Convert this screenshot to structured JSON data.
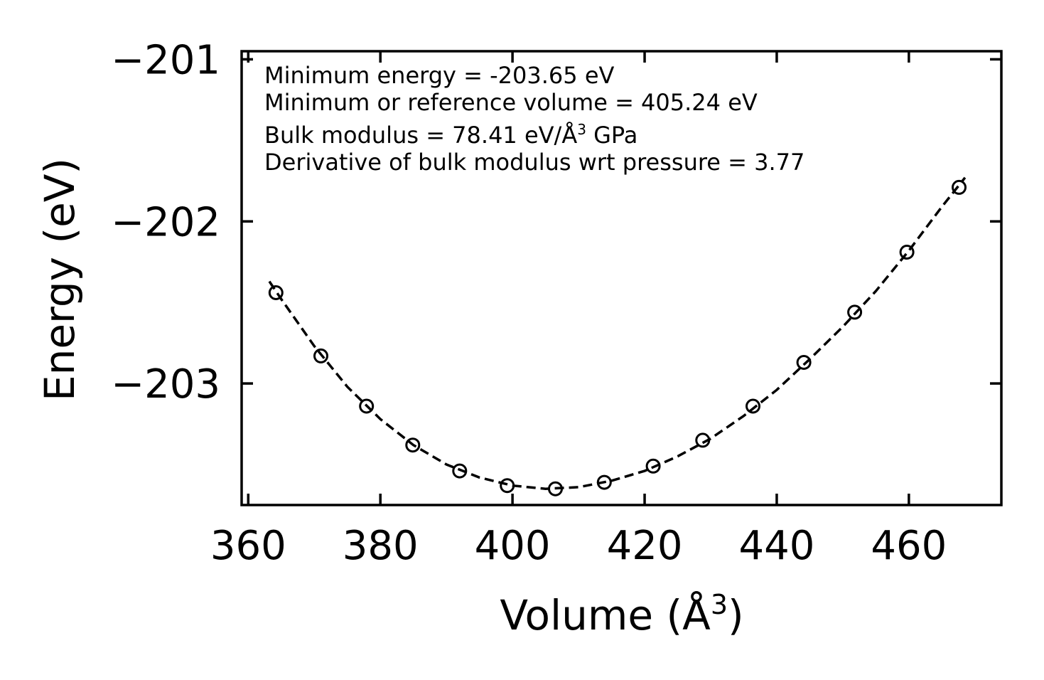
{
  "chart_data": {
    "type": "scatter",
    "title": "",
    "xlabel": "Volume (Å",
    "xlabel_superscript": "3",
    "xlabel_close": ")",
    "ylabel": "Energy (eV)",
    "xlim": [
      359,
      474
    ],
    "ylim": [
      -203.75,
      -200.95
    ],
    "xticks": [
      360,
      380,
      400,
      420,
      440,
      460
    ],
    "yticks": [
      -201,
      -202,
      -203
    ],
    "xtick_labels": [
      "360",
      "380",
      "400",
      "420",
      "440",
      "460"
    ],
    "ytick_labels": [
      "−201",
      "−202",
      "−203"
    ],
    "series": [
      {
        "name": "data",
        "marker": "open-circle",
        "color": "#000000",
        "x": [
          364.2,
          371.0,
          377.9,
          384.9,
          392.0,
          399.2,
          406.5,
          413.9,
          421.3,
          428.8,
          436.4,
          444.1,
          451.8,
          459.7,
          467.6
        ],
        "y": [
          -202.44,
          -202.83,
          -203.14,
          -203.38,
          -203.54,
          -203.63,
          -203.65,
          -203.61,
          -203.51,
          -203.35,
          -203.14,
          -202.87,
          -202.56,
          -202.19,
          -201.79
        ]
      },
      {
        "name": "fit",
        "style": "dashed-line",
        "color": "#000000",
        "x": [
          363.2,
          365,
          370,
          375,
          380,
          385,
          390,
          395,
          400,
          405,
          410,
          415,
          420,
          425,
          430,
          435,
          440,
          445,
          450,
          455,
          460,
          465,
          468.5
        ],
        "y": [
          -202.37,
          -202.48,
          -202.77,
          -203.02,
          -203.22,
          -203.38,
          -203.5,
          -203.58,
          -203.63,
          -203.65,
          -203.64,
          -203.6,
          -203.54,
          -203.45,
          -203.34,
          -203.2,
          -203.04,
          -202.85,
          -202.65,
          -202.43,
          -202.18,
          -201.91,
          -201.73
        ]
      }
    ],
    "annotations": [
      "Minimum energy = -203.65 eV",
      "Minimum or reference volume = 405.24 eV",
      "Bulk modulus = 78.41 eV/Å",
      "3",
      " GPa",
      "Derivative of bulk modulus wrt pressure = 3.77"
    ],
    "grid": false,
    "legend": "none"
  }
}
